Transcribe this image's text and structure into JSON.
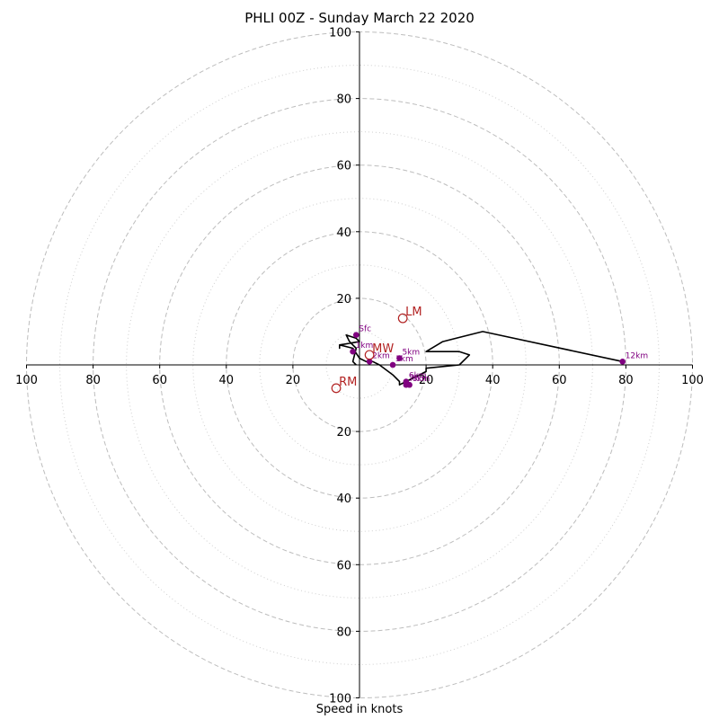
{
  "chart_data": {
    "type": "scatter",
    "title": "PHLI 00Z - Sunday March 22 2020",
    "xlabel": "Speed in knots",
    "ylabel": "",
    "xlim": [
      -100,
      100
    ],
    "ylim": [
      -100,
      100
    ],
    "ring_major": [
      20,
      40,
      60,
      80,
      100
    ],
    "ring_minor": [
      10,
      30,
      50,
      70,
      90
    ],
    "axis_ticks": {
      "right": [
        "20",
        "40",
        "60",
        "80",
        "100"
      ],
      "left": [
        "20",
        "40",
        "60",
        "80",
        "100"
      ],
      "top": [
        "20",
        "40",
        "60",
        "80",
        "100"
      ],
      "bottom": [
        "20",
        "40",
        "60",
        "80",
        "100"
      ]
    },
    "hodograph": {
      "x": [
        -1,
        -2,
        -1,
        -3,
        -4,
        -1,
        0,
        -6,
        -6,
        -6,
        -2,
        0,
        2,
        4,
        6,
        10,
        12,
        12,
        12,
        14,
        20,
        20,
        30,
        33,
        30,
        20,
        25,
        37,
        79
      ],
      "y": [
        0,
        1,
        5,
        7,
        9,
        8,
        7,
        6,
        5,
        6,
        5,
        2,
        1,
        1,
        0,
        -3,
        -5,
        -6,
        -6,
        -5,
        -2,
        -1,
        0,
        3,
        4,
        4,
        7,
        10,
        1
      ],
      "color": "#000000"
    },
    "height_points": [
      {
        "label": "Sfc",
        "x": -1,
        "y": 9
      },
      {
        "label": "1km",
        "x": -2,
        "y": 4
      },
      {
        "label": "2km",
        "x": 3,
        "y": 1
      },
      {
        "label": "3km",
        "x": 10,
        "y": 0
      },
      {
        "label": "5km",
        "x": 12,
        "y": 2
      },
      {
        "label": "6km",
        "x": 14,
        "y": -5
      },
      {
        "label": "7km",
        "x": 14,
        "y": -6
      },
      {
        "label": "8km",
        "x": 15,
        "y": -6
      },
      {
        "label": "12km",
        "x": 79,
        "y": 1
      }
    ],
    "point_color": "#800080",
    "storm_motion": [
      {
        "label": "LM",
        "x": 13,
        "y": 14
      },
      {
        "label": "RM",
        "x": -7,
        "y": -7
      },
      {
        "label": "MW",
        "x": 3,
        "y": 3
      }
    ],
    "storm_color": "#B22222"
  }
}
